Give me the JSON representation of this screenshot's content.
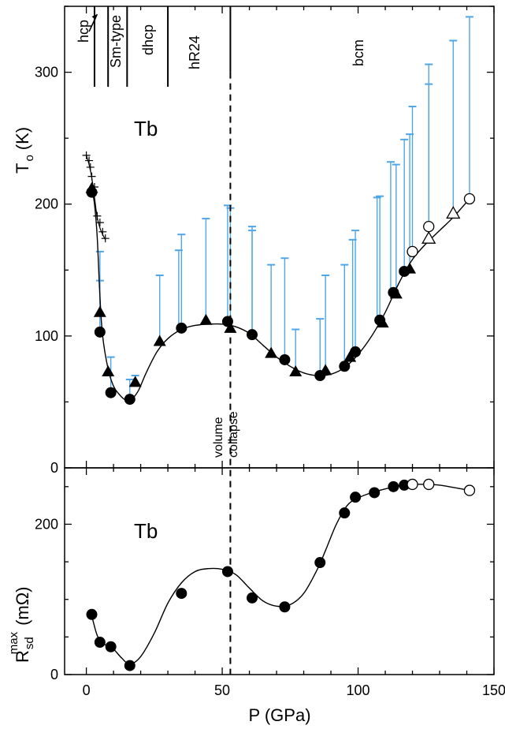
{
  "chart_data": [
    {
      "type": "scatter",
      "panel_label": "Tb",
      "ylabel_main": "T",
      "ylabel_sub": "o",
      "ylabel_unit": "(K)",
      "xlim": [
        -8,
        150
      ],
      "ylim": [
        0,
        350
      ],
      "yticks": [
        "0",
        "100",
        "200",
        "300"
      ],
      "phase_labels": [
        "hcp",
        "Sm-type",
        "dhcp",
        "hR24",
        "bcm"
      ],
      "phase_boundaries": [
        3,
        8,
        15,
        30,
        53
      ],
      "annotation_line1": "volume",
      "annotation_line2": "collapse",
      "volume_collapse_pressure": 53,
      "series": [
        {
          "marker": "filled-circle",
          "x": [
            2,
            5,
            9,
            16,
            35,
            52,
            61,
            73,
            86,
            95,
            99,
            108,
            113,
            117
          ],
          "y": [
            209,
            103,
            57,
            52,
            106,
            111,
            101,
            82,
            70,
            77,
            88,
            112,
            133,
            149
          ]
        },
        {
          "marker": "filled-triangle",
          "x": [
            2,
            5,
            8,
            18,
            27,
            44,
            53,
            68,
            77,
            88,
            97,
            109,
            114,
            119
          ],
          "y": [
            212,
            118,
            73,
            65,
            96,
            112,
            106,
            87,
            73,
            74,
            84,
            110,
            132,
            151
          ]
        },
        {
          "marker": "open-circle",
          "x": [
            120,
            126,
            141
          ],
          "y": [
            164,
            183,
            204
          ]
        },
        {
          "marker": "open-triangle",
          "x": [
            126,
            135
          ],
          "y": [
            174,
            193
          ]
        },
        {
          "marker": "plus",
          "x": [
            0,
            1,
            1.5,
            2,
            3,
            4,
            5,
            6,
            7
          ],
          "y": [
            237,
            233,
            228,
            221,
            213,
            191,
            186,
            179,
            174
          ]
        }
      ],
      "error_bars": [
        {
          "x": 5,
          "low": 103,
          "high": 164
        },
        {
          "x": 5,
          "low": 103,
          "high": 142
        },
        {
          "x": 9,
          "low": 57,
          "high": 84
        },
        {
          "x": 16,
          "low": 52,
          "high": 67
        },
        {
          "x": 18,
          "low": 65,
          "high": 70
        },
        {
          "x": 27,
          "low": 96,
          "high": 146
        },
        {
          "x": 34,
          "low": 106,
          "high": 165
        },
        {
          "x": 35,
          "low": 106,
          "high": 177
        },
        {
          "x": 44,
          "low": 112,
          "high": 189
        },
        {
          "x": 52,
          "low": 111,
          "high": 199
        },
        {
          "x": 53,
          "low": 106,
          "high": 197
        },
        {
          "x": 61,
          "low": 101,
          "high": 183
        },
        {
          "x": 61,
          "low": 101,
          "high": 180
        },
        {
          "x": 68,
          "low": 87,
          "high": 154
        },
        {
          "x": 73,
          "low": 82,
          "high": 159
        },
        {
          "x": 77,
          "low": 73,
          "high": 105
        },
        {
          "x": 86,
          "low": 70,
          "high": 113
        },
        {
          "x": 88,
          "low": 74,
          "high": 146
        },
        {
          "x": 95,
          "low": 77,
          "high": 154
        },
        {
          "x": 98,
          "low": 84,
          "high": 173
        },
        {
          "x": 99,
          "low": 88,
          "high": 180
        },
        {
          "x": 107,
          "low": 112,
          "high": 205
        },
        {
          "x": 108,
          "low": 112,
          "high": 206
        },
        {
          "x": 112,
          "low": 133,
          "high": 232
        },
        {
          "x": 114,
          "low": 132,
          "high": 230
        },
        {
          "x": 117,
          "low": 149,
          "high": 249
        },
        {
          "x": 119,
          "low": 151,
          "high": 253
        },
        {
          "x": 120,
          "low": 164,
          "high": 274
        },
        {
          "x": 126,
          "low": 183,
          "high": 306
        },
        {
          "x": 126,
          "low": 183,
          "high": 291
        },
        {
          "x": 135,
          "low": 193,
          "high": 324
        },
        {
          "x": 141,
          "low": 204,
          "high": 342
        }
      ],
      "fit_curve": {
        "x": [
          2,
          3,
          4,
          5,
          6,
          8,
          10,
          12,
          14,
          16,
          19,
          22,
          26,
          30,
          35,
          40,
          45,
          50,
          55,
          60,
          65,
          70,
          75,
          80,
          85,
          90,
          95,
          100,
          105,
          110,
          115,
          120,
          125,
          130,
          135,
          141
        ],
        "y": [
          212,
          200,
          175,
          130,
          100,
          75,
          62,
          56,
          52,
          51,
          58,
          72,
          88,
          98,
          105,
          108,
          109,
          109,
          107,
          102,
          93,
          84,
          77,
          72,
          70,
          71,
          76,
          86,
          100,
          118,
          140,
          158,
          170,
          180,
          190,
          204
        ]
      },
      "plus_curve": {
        "x": [
          0,
          1,
          2,
          3,
          4,
          5,
          6,
          7
        ],
        "y": [
          237,
          230,
          220,
          205,
          190,
          182,
          177,
          173
        ]
      }
    },
    {
      "type": "scatter",
      "panel_label": "Tb",
      "xlabel": "P (GPa)",
      "ylabel_main": "R",
      "ylabel_sub": "sd",
      "ylabel_sup": "max",
      "ylabel_unit": "(mΩ)",
      "xlim": [
        -8,
        150
      ],
      "ylim": [
        0,
        275
      ],
      "xticks": [
        "0",
        "50",
        "100",
        "150"
      ],
      "yticks": [
        "0",
        "200"
      ],
      "series": [
        {
          "marker": "filled-circle",
          "x": [
            2,
            5,
            9,
            16,
            35,
            52,
            61,
            73,
            86,
            95,
            99,
            106,
            113,
            117
          ],
          "y": [
            80,
            43,
            37,
            12,
            108,
            137,
            102,
            90,
            149,
            215,
            236,
            242,
            250,
            252
          ]
        },
        {
          "marker": "open-circle",
          "x": [
            120,
            126,
            141
          ],
          "y": [
            253,
            253,
            245
          ]
        }
      ],
      "fit_curve": {
        "x": [
          2,
          4,
          6,
          8,
          10,
          13,
          16,
          20,
          25,
          30,
          35,
          40,
          45,
          50,
          55,
          60,
          65,
          70,
          75,
          80,
          85,
          88,
          92,
          96,
          100,
          105,
          110,
          115,
          120,
          125,
          130,
          135,
          141
        ],
        "y": [
          78,
          52,
          42,
          38,
          34,
          22,
          14,
          24,
          55,
          95,
          122,
          137,
          141,
          140,
          133,
          115,
          98,
          91,
          93,
          108,
          140,
          165,
          200,
          225,
          235,
          242,
          247,
          251,
          253,
          253,
          252,
          249,
          245
        ]
      }
    }
  ]
}
